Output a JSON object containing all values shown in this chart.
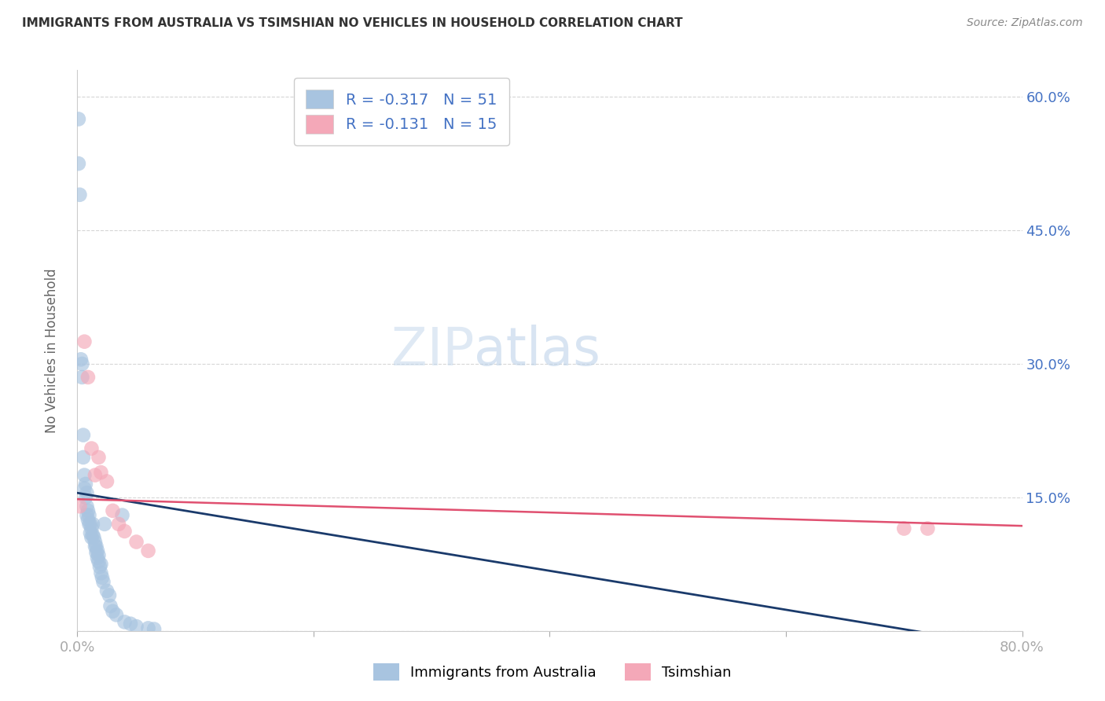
{
  "title": "IMMIGRANTS FROM AUSTRALIA VS TSIMSHIAN NO VEHICLES IN HOUSEHOLD CORRELATION CHART",
  "source": "Source: ZipAtlas.com",
  "ylabel": "No Vehicles in Household",
  "blue_R": -0.317,
  "blue_N": 51,
  "pink_R": -0.131,
  "pink_N": 15,
  "blue_color": "#a8c4e0",
  "pink_color": "#f4a8b8",
  "blue_line_color": "#1a3a6b",
  "pink_line_color": "#e05070",
  "legend_blue_label": "Immigrants from Australia",
  "legend_pink_label": "Tsimshian",
  "xlim": [
    0.0,
    0.8
  ],
  "ylim": [
    0.0,
    0.63
  ],
  "yticks": [
    0.0,
    0.15,
    0.3,
    0.45,
    0.6
  ],
  "ytick_labels_right": [
    "",
    "15.0%",
    "30.0%",
    "45.0%",
    "60.0%"
  ],
  "xticks": [
    0.0,
    0.2,
    0.4,
    0.6,
    0.8
  ],
  "xtick_labels": [
    "0.0%",
    "",
    "",
    "",
    "80.0%"
  ],
  "blue_x": [
    0.001,
    0.001,
    0.002,
    0.003,
    0.004,
    0.004,
    0.005,
    0.005,
    0.006,
    0.006,
    0.007,
    0.007,
    0.008,
    0.008,
    0.008,
    0.009,
    0.009,
    0.01,
    0.01,
    0.011,
    0.011,
    0.012,
    0.012,
    0.013,
    0.013,
    0.014,
    0.015,
    0.015,
    0.016,
    0.016,
    0.017,
    0.017,
    0.018,
    0.018,
    0.019,
    0.02,
    0.02,
    0.021,
    0.022,
    0.023,
    0.025,
    0.027,
    0.028,
    0.03,
    0.033,
    0.038,
    0.04,
    0.045,
    0.05,
    0.06,
    0.065
  ],
  "blue_y": [
    0.575,
    0.525,
    0.49,
    0.305,
    0.285,
    0.3,
    0.22,
    0.195,
    0.175,
    0.16,
    0.165,
    0.15,
    0.155,
    0.14,
    0.13,
    0.135,
    0.125,
    0.13,
    0.12,
    0.12,
    0.11,
    0.115,
    0.105,
    0.12,
    0.108,
    0.105,
    0.1,
    0.095,
    0.095,
    0.088,
    0.09,
    0.082,
    0.085,
    0.078,
    0.072,
    0.075,
    0.065,
    0.06,
    0.055,
    0.12,
    0.045,
    0.04,
    0.028,
    0.022,
    0.018,
    0.13,
    0.01,
    0.008,
    0.005,
    0.003,
    0.002
  ],
  "pink_x": [
    0.002,
    0.006,
    0.009,
    0.012,
    0.015,
    0.018,
    0.02,
    0.025,
    0.03,
    0.035,
    0.04,
    0.05,
    0.06,
    0.7,
    0.72
  ],
  "pink_y": [
    0.14,
    0.325,
    0.285,
    0.205,
    0.175,
    0.195,
    0.178,
    0.168,
    0.135,
    0.12,
    0.112,
    0.1,
    0.09,
    0.115,
    0.115
  ]
}
